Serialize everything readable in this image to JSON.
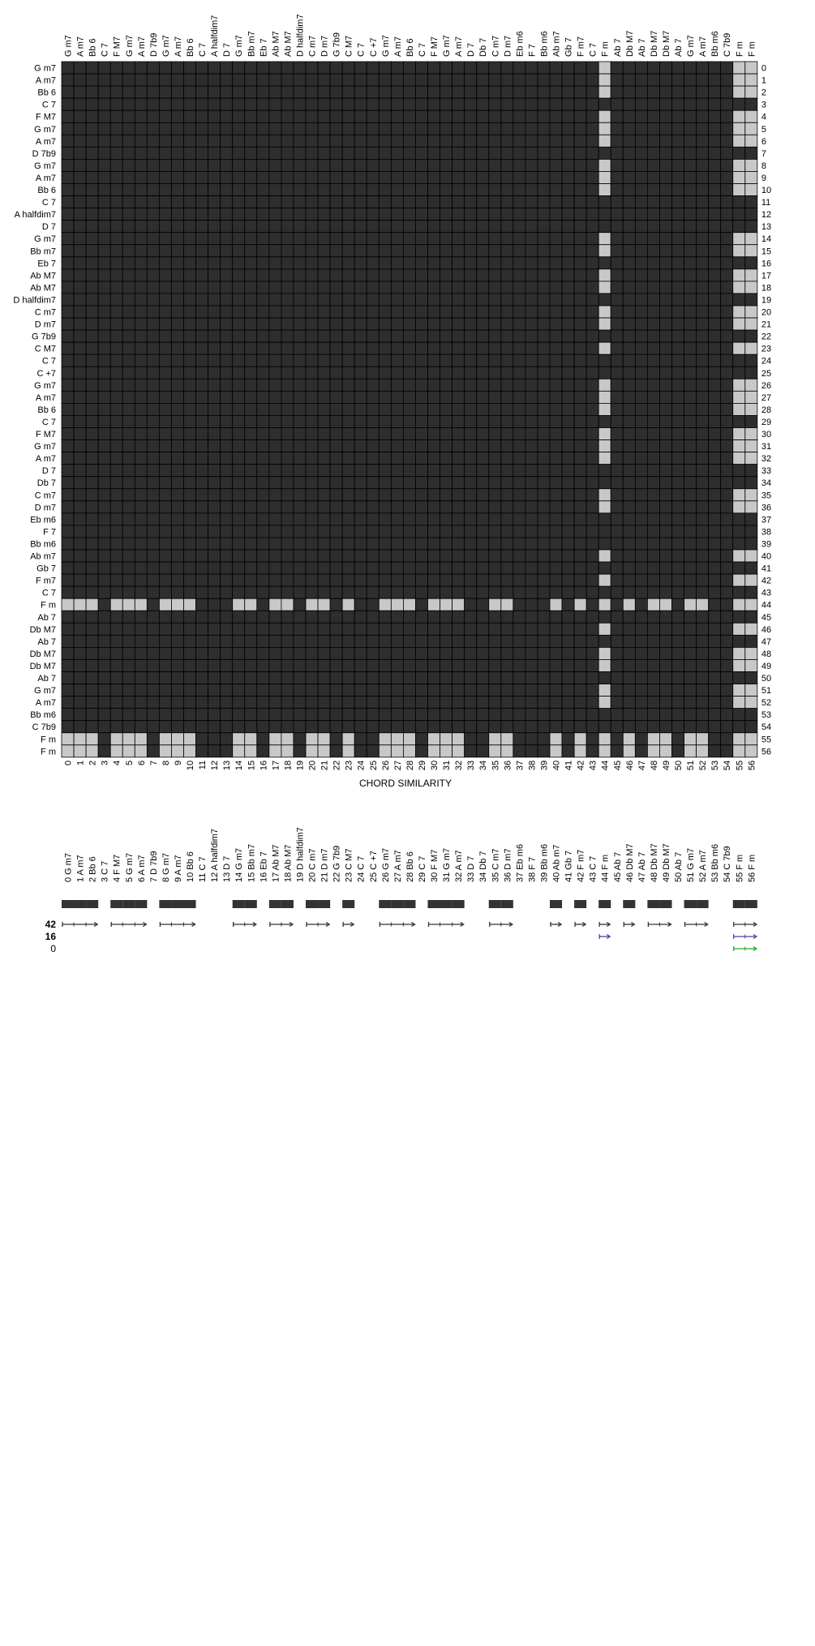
{
  "chart_data": [
    {
      "type": "heatmap",
      "title": "",
      "xlabel": "CHORD SIMILARITY",
      "ylabel": "",
      "chords": [
        "G m7",
        "A m7",
        "Bb 6",
        "C 7",
        "F M7",
        "G m7",
        "A m7",
        "D 7b9",
        "G m7",
        "A m7",
        "Bb 6",
        "C 7",
        "A halfdim7",
        "D 7",
        "G m7",
        "Bb m7",
        "Eb 7",
        "Ab M7",
        "Ab M7",
        "D halfdim7",
        "C m7",
        "D m7",
        "G 7b9",
        "C M7",
        "C 7",
        "C +7",
        "G m7",
        "A m7",
        "Bb 6",
        "C 7",
        "F M7",
        "G m7",
        "A m7",
        "D 7",
        "Db 7",
        "C m7",
        "D m7",
        "Eb m6",
        "F 7",
        "Bb m6",
        "Ab m7",
        "Gb 7",
        "F m7",
        "C 7",
        "F m",
        "Ab 7",
        "Db M7",
        "Ab 7",
        "Db M7",
        "Db M7",
        "Ab 7",
        "G m7",
        "A m7",
        "Bb m6",
        "C 7b9",
        "F m",
        "F m"
      ],
      "indices": [
        0,
        1,
        2,
        3,
        4,
        5,
        6,
        7,
        8,
        9,
        10,
        11,
        12,
        13,
        14,
        15,
        16,
        17,
        18,
        19,
        20,
        21,
        22,
        23,
        24,
        25,
        26,
        27,
        28,
        29,
        30,
        31,
        32,
        33,
        34,
        35,
        36,
        37,
        38,
        39,
        40,
        41,
        42,
        43,
        44,
        45,
        46,
        47,
        48,
        49,
        50,
        51,
        52,
        53,
        54,
        55,
        56
      ],
      "f_minor_related": [
        0,
        1,
        2,
        4,
        5,
        6,
        8,
        9,
        10,
        14,
        15,
        17,
        18,
        20,
        21,
        23,
        26,
        27,
        28,
        30,
        31,
        32,
        35,
        36,
        40,
        42,
        44,
        46,
        48,
        49,
        51,
        52,
        55,
        56
      ],
      "f_minor_chords": [
        44,
        55,
        56
      ],
      "colors": {
        "high": "#c8c8c8",
        "low": "#2e2e2e",
        "grid": "#000000"
      }
    },
    {
      "type": "other",
      "row_labels": [
        "42",
        "16",
        "0"
      ],
      "segments": [
        {
          "row": 0,
          "color": "#333333",
          "runs": [
            [
              0,
              2
            ],
            [
              4,
              6
            ],
            [
              8,
              10
            ],
            [
              14,
              15
            ],
            [
              17,
              18
            ],
            [
              20,
              21
            ],
            [
              23,
              23
            ],
            [
              26,
              28
            ],
            [
              30,
              32
            ],
            [
              35,
              36
            ],
            [
              40,
              40
            ],
            [
              42,
              42
            ],
            [
              44,
              44
            ],
            [
              46,
              46
            ],
            [
              48,
              49
            ],
            [
              51,
              52
            ],
            [
              55,
              56
            ]
          ]
        },
        {
          "row": 1,
          "color": "#4444aa",
          "runs": [
            [
              44,
              44
            ],
            [
              55,
              56
            ]
          ]
        },
        {
          "row": 2,
          "color": "#22aa22",
          "runs": [
            [
              55,
              56
            ]
          ]
        }
      ]
    }
  ]
}
